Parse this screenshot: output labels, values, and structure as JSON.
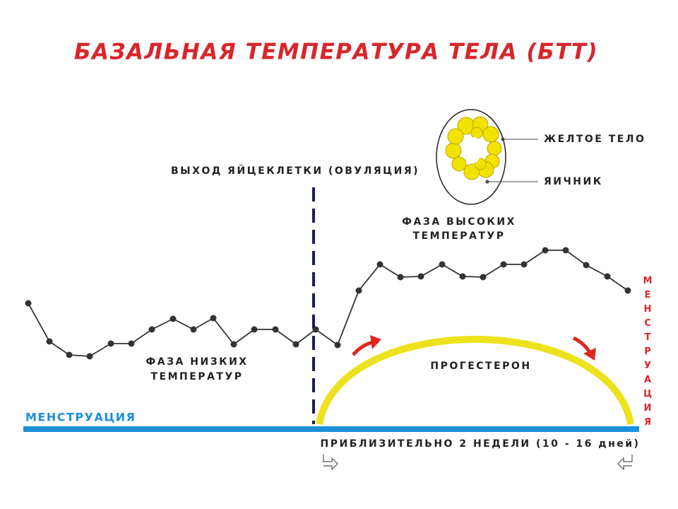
{
  "title": "БАЗАЛЬНАЯ ТЕМПЕРАТУРА ТЕЛА (БТТ)",
  "ovulation_label": "ВЫХОД ЯЙЦЕКЛЕТКИ (ОВУЛЯЦИЯ)",
  "inset": {
    "corpus_luteum": "ЖЕЛТОЕ ТЕЛО",
    "ovary": "ЯИЧНИК"
  },
  "high_phase": [
    "ФАЗА ВЫСОКИХ",
    "ТЕМПЕРАТУР"
  ],
  "low_phase": [
    "ФАЗА НИЗКИХ",
    "ТЕМПЕРАТУР"
  ],
  "progesterone": "ПРОГЕСТЕРОН",
  "menstruation_left": "МЕНСТРУАЦИЯ",
  "menstruation_right": "МЕНСТРУАЦИЯ",
  "duration": "ПРИБЛИЗИТЕЛЬНО 2 НЕДЕЛИ (10 - 16 дней)"
}
